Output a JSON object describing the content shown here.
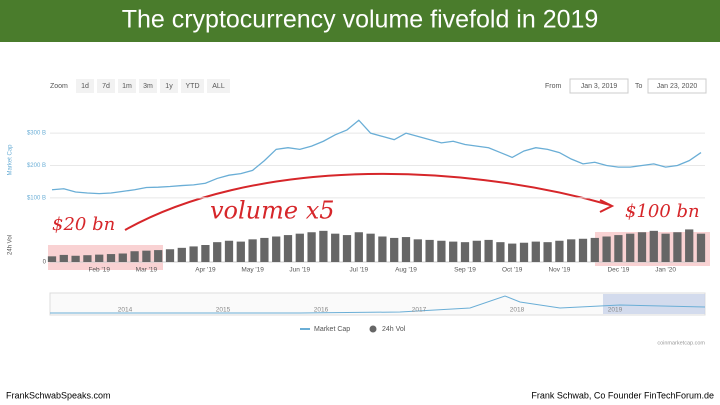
{
  "header": {
    "title": "The cryptocurrency volume fivefold in 2019"
  },
  "zoom": {
    "label": "Zoom",
    "buttons": [
      "1d",
      "7d",
      "1m",
      "3m",
      "1y",
      "YTD",
      "ALL"
    ]
  },
  "range": {
    "from_label": "From",
    "from": "Jan 3, 2019",
    "to_label": "To",
    "to": "Jan 23, 2020"
  },
  "chart_data": {
    "type": "line",
    "categories": [
      null,
      null,
      null,
      null,
      "Feb '19",
      null,
      null,
      null,
      "Mar '19",
      null,
      null,
      null,
      null,
      "Apr '19",
      null,
      null,
      null,
      "May '19",
      null,
      null,
      null,
      "Jun '19",
      null,
      null,
      null,
      null,
      "Jul '19",
      null,
      null,
      null,
      "Aug '19",
      null,
      null,
      null,
      null,
      "Sep '19",
      null,
      null,
      null,
      "Oct '19",
      null,
      null,
      null,
      "Nov '19",
      null,
      null,
      null,
      null,
      "Dec '19",
      null,
      null,
      null,
      "Jan '20",
      null,
      null,
      null
    ],
    "ylabel": "Market Cap",
    "y2label": "24h Vol",
    "ylim": [
      50,
      350
    ],
    "yticks": [
      {
        "value": 100,
        "label": "$100 B"
      },
      {
        "value": 200,
        "label": "$200 B"
      },
      {
        "value": 300,
        "label": "$300 B"
      }
    ],
    "y2lim": [
      0,
      120
    ],
    "y2ticks": [
      0
    ],
    "series": [
      {
        "name": "Market Cap",
        "type": "line",
        "color": "#6aaed6",
        "values": [
          125,
          128,
          118,
          115,
          113,
          115,
          120,
          125,
          132,
          133,
          135,
          138,
          140,
          145,
          160,
          170,
          175,
          185,
          215,
          250,
          255,
          250,
          260,
          275,
          295,
          310,
          340,
          300,
          290,
          280,
          300,
          290,
          280,
          270,
          275,
          265,
          260,
          255,
          240,
          225,
          245,
          255,
          250,
          240,
          220,
          205,
          210,
          200,
          195,
          195,
          200,
          205,
          195,
          200,
          215,
          240
        ]
      },
      {
        "name": "24h Vol",
        "type": "bar",
        "axis": "y2",
        "color": "#666666",
        "values": [
          20,
          25,
          22,
          24,
          26,
          28,
          30,
          38,
          40,
          42,
          45,
          50,
          55,
          60,
          70,
          75,
          72,
          80,
          85,
          90,
          95,
          100,
          105,
          110,
          100,
          95,
          105,
          100,
          90,
          85,
          88,
          80,
          78,
          75,
          72,
          70,
          75,
          78,
          70,
          65,
          68,
          72,
          70,
          75,
          80,
          82,
          85,
          90,
          95,
          100,
          105,
          110,
          100,
          105,
          115,
          100
        ]
      }
    ],
    "annotations": [
      "$20 bn",
      "volume x5",
      "$100 bn"
    ],
    "navigator_labels": [
      "2014",
      "2015",
      "2016",
      "2017",
      "2018",
      "2019"
    ],
    "credit": "coinmarketcap.com"
  },
  "footer": {
    "left": "FrankSchwabSpeaks.com",
    "right": "Frank Schwab, Co Founder FinTechForum.de"
  }
}
